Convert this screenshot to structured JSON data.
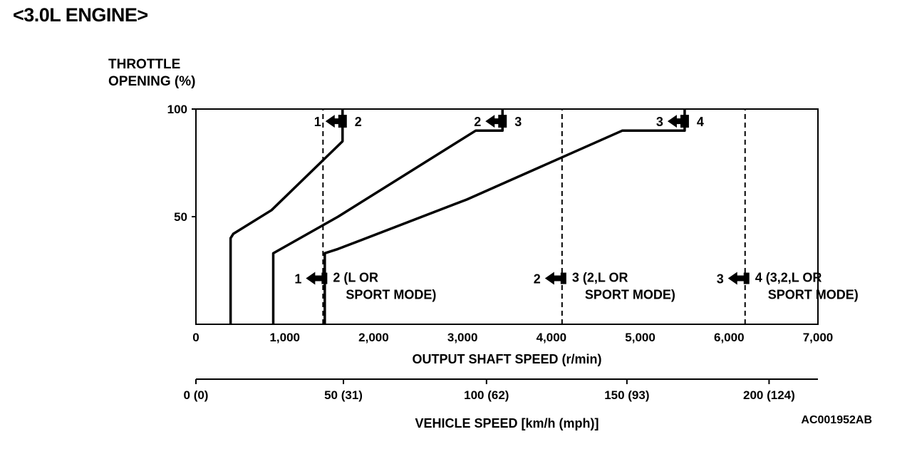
{
  "title": "<3.0L ENGINE>",
  "figure_code": "AC001952AB",
  "chart_data": {
    "type": "line",
    "ylabel_line1": "THROTTLE",
    "ylabel_line2": "OPENING (%)",
    "xlabel": "OUTPUT SHAFT SPEED (r/min)",
    "xlim": [
      0,
      7000
    ],
    "ylim": [
      0,
      100
    ],
    "y_ticks": [
      {
        "v": 100,
        "label": "100"
      },
      {
        "v": 50,
        "label": "50"
      }
    ],
    "x_ticks": [
      {
        "v": 0,
        "label": "0"
      },
      {
        "v": 1000,
        "label": "1,000"
      },
      {
        "v": 2000,
        "label": "2,000"
      },
      {
        "v": 3000,
        "label": "3,000"
      },
      {
        "v": 4000,
        "label": "4,000"
      },
      {
        "v": 5000,
        "label": "5,000"
      },
      {
        "v": 6000,
        "label": "6,000"
      },
      {
        "v": 7000,
        "label": "7,000"
      }
    ],
    "vehicle_axis": {
      "label": "VEHICLE SPEED [km/h (mph)]",
      "ticks": [
        {
          "v": 0,
          "label": "0 (0)"
        },
        {
          "v": 1660,
          "label": "50 (31)"
        },
        {
          "v": 3270,
          "label": "100 (62)"
        },
        {
          "v": 4850,
          "label": "150 (93)"
        },
        {
          "v": 6450,
          "label": "200 (124)"
        }
      ]
    },
    "series": [
      {
        "points": [
          [
            390,
            0
          ],
          [
            390,
            40
          ],
          [
            420,
            42
          ],
          [
            850,
            53
          ],
          [
            1650,
            85
          ],
          [
            1650,
            100
          ]
        ]
      },
      {
        "points": [
          [
            870,
            0
          ],
          [
            870,
            33
          ],
          [
            1600,
            50
          ],
          [
            3150,
            90
          ],
          [
            3450,
            90
          ],
          [
            3450,
            100
          ]
        ]
      },
      {
        "points": [
          [
            1450,
            0
          ],
          [
            1450,
            33
          ],
          [
            1600,
            35
          ],
          [
            3050,
            58
          ],
          [
            4800,
            90
          ],
          [
            5500,
            90
          ],
          [
            5500,
            100
          ]
        ]
      }
    ],
    "vertical_lines": [
      {
        "x": 1430,
        "ymax": 100
      },
      {
        "x": 4120,
        "ymax": 100
      },
      {
        "x": 6180,
        "ymax": 100
      }
    ],
    "upshift_labels": [
      {
        "x": 1650,
        "y": 95,
        "from": "1",
        "to": "2"
      },
      {
        "x": 3450,
        "y": 95,
        "from": "2",
        "to": "3"
      },
      {
        "x": 5500,
        "y": 95,
        "from": "3",
        "to": "4"
      }
    ],
    "downshift_labels": [
      {
        "x": 1430,
        "y": 22,
        "from": "1",
        "to": "2 (L OR",
        "to_line2": "SPORT MODE)"
      },
      {
        "x": 4120,
        "y": 22,
        "from": "2",
        "to": "3 (2,L OR",
        "to_line2": "SPORT MODE)"
      },
      {
        "x": 6180,
        "y": 22,
        "from": "3",
        "to": "4 (3,2,L OR",
        "to_line2": "SPORT MODE)"
      }
    ]
  }
}
